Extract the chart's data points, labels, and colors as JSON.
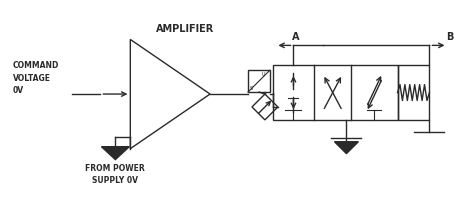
{
  "line_color": "#2a2a2a",
  "amplifier_label": "AMPLIFIER",
  "command_label": "COMMAND\nVOLTAGE\n0V",
  "power_label": "FROM POWER\nSUPPLY 0V",
  "port_A": "A",
  "port_B": "B",
  "figsize": [
    4.74,
    2.03
  ],
  "dpi": 100,
  "xlim": [
    0,
    474
  ],
  "ylim": [
    0,
    203
  ]
}
